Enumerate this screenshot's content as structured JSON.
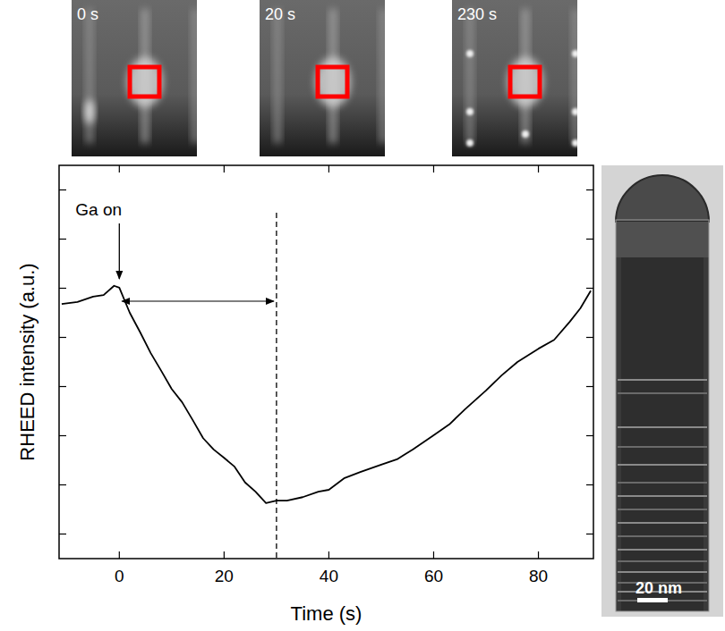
{
  "chart_data": {
    "type": "line",
    "x_label": "Time (s)",
    "y_label": "RHEED intensity (a.u.)",
    "x": [
      -11,
      -8,
      -5,
      -3,
      -1,
      0,
      2,
      4,
      6,
      8,
      10,
      12,
      14,
      16,
      18,
      20,
      22,
      24,
      26,
      28,
      30,
      32,
      35,
      38,
      40,
      43,
      46,
      50,
      53,
      56,
      60,
      63,
      66,
      70,
      73,
      76,
      80,
      83,
      86,
      88,
      90
    ],
    "values": [
      5.18,
      5.22,
      5.33,
      5.36,
      5.55,
      5.51,
      5.0,
      4.6,
      4.18,
      3.82,
      3.45,
      3.18,
      2.82,
      2.45,
      2.22,
      2.05,
      1.87,
      1.55,
      1.36,
      1.13,
      1.18,
      1.18,
      1.25,
      1.36,
      1.4,
      1.64,
      1.76,
      1.91,
      2.02,
      2.22,
      2.51,
      2.73,
      3.04,
      3.42,
      3.73,
      4.0,
      4.27,
      4.45,
      4.82,
      5.09,
      5.45
    ],
    "color": "#000000",
    "xlim": [
      -11.5,
      90.5
    ],
    "xticks": [
      0,
      20,
      40,
      60,
      80
    ],
    "ylim": [
      0,
      8
    ],
    "yticks": [
      0.5,
      1.5,
      2.5,
      3.5,
      4.5,
      5.5,
      6.5,
      7.5
    ],
    "tick_labels": "x",
    "annotations": [
      {
        "text": "Ga on",
        "x": 0
      }
    ],
    "vlines": [
      30
    ],
    "spans": [
      [
        0,
        30
      ]
    ]
  },
  "rheed_images": [
    {
      "label": "0 s"
    },
    {
      "label": "20 s"
    },
    {
      "label": "230 s"
    }
  ],
  "tem_image": {
    "scale_bar": "20 nm"
  }
}
